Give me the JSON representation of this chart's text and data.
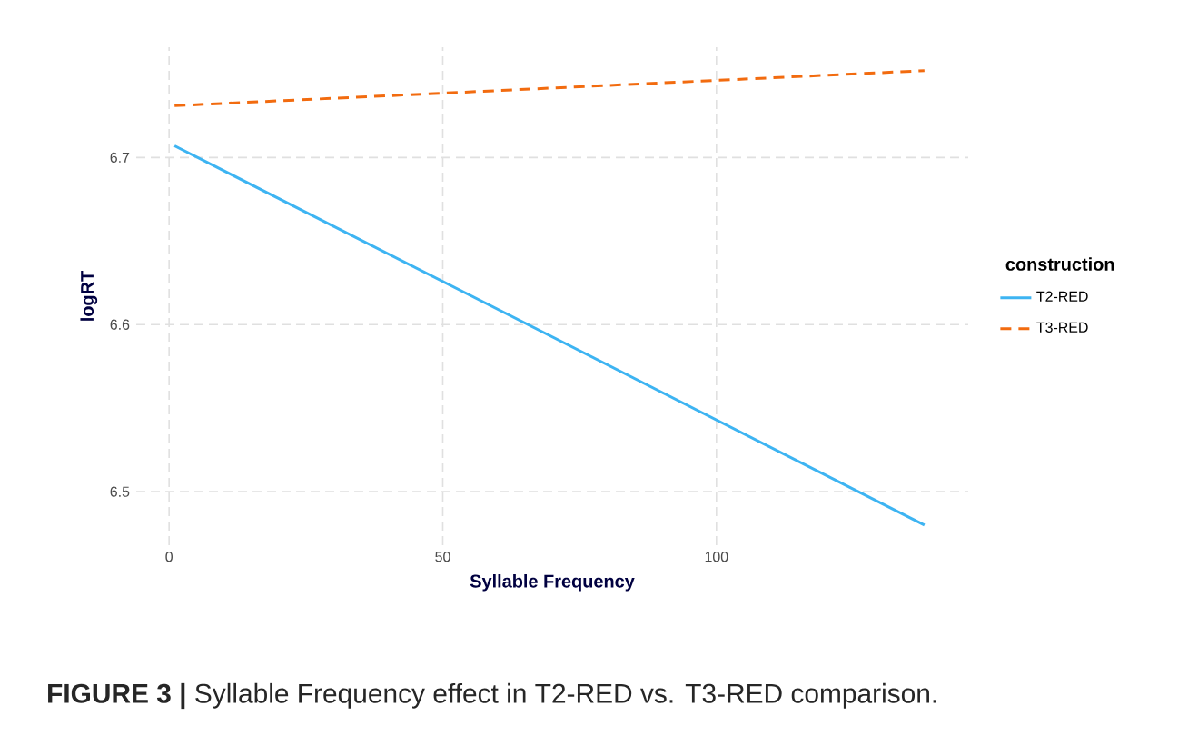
{
  "chart_data": {
    "type": "line",
    "xlabel": "Syllable Frequency",
    "ylabel": "logRT",
    "legend_title": "construction",
    "annotations": [
      "**FIGURE 3 |** Syllable Frequency effect in T2-RED vs. T3-RED comparison."
    ],
    "xlim": [
      -6,
      146
    ],
    "ylim": [
      6.468,
      6.766
    ],
    "xticks": [
      0,
      50,
      100
    ],
    "yticks": [
      6.5,
      6.6,
      6.7
    ],
    "grid": true,
    "legend": "right",
    "x": [
      1,
      138
    ],
    "series": [
      {
        "name": "T2-RED",
        "color": "#3db4f2",
        "line_style": "solid",
        "values": [
          6.707,
          6.48
        ]
      },
      {
        "name": "T3-RED",
        "color": "#f26b0f",
        "line_style": "dashed",
        "values": [
          6.731,
          6.752
        ]
      }
    ]
  }
}
